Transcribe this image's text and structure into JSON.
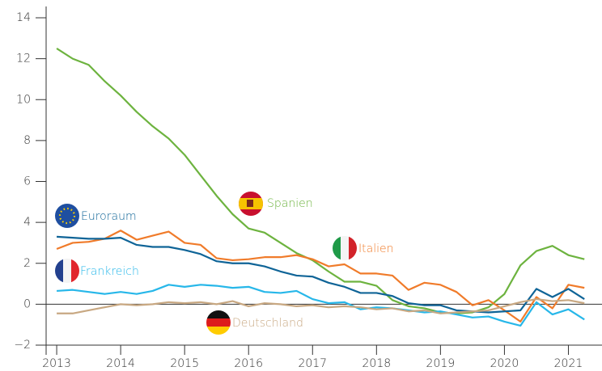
{
  "chart_data": {
    "type": "line",
    "x": [
      2013,
      2013.25,
      2013.5,
      2013.75,
      2014,
      2014.25,
      2014.5,
      2014.75,
      2015,
      2015.25,
      2015.5,
      2015.75,
      2016,
      2016.25,
      2016.5,
      2016.75,
      2017,
      2017.25,
      2017.5,
      2017.75,
      2018,
      2018.25,
      2018.5,
      2018.75,
      2019,
      2019.25,
      2019.5,
      2019.75,
      2020,
      2020.25,
      2020.5,
      2020.75,
      2021,
      2021.25
    ],
    "xlim": [
      2012.86,
      2021.5
    ],
    "xticks": [
      2013,
      2014,
      2015,
      2016,
      2017,
      2018,
      2019,
      2020,
      2021
    ],
    "ylim": [
      -2,
      14
    ],
    "yticks": [
      {
        "value": -2,
        "label": "−2"
      },
      0,
      2,
      4,
      6,
      8,
      10,
      12,
      14
    ],
    "series": [
      {
        "name": "Spanien",
        "color": "#6db33f",
        "values": [
          12.5,
          12.0,
          11.7,
          10.9,
          10.2,
          9.4,
          8.7,
          8.1,
          7.3,
          6.3,
          5.3,
          4.4,
          3.7,
          3.5,
          3.0,
          2.5,
          2.15,
          1.6,
          1.1,
          1.1,
          0.9,
          0.2,
          -0.1,
          -0.2,
          -0.4,
          -0.45,
          -0.4,
          -0.15,
          0.5,
          1.9,
          2.6,
          2.85,
          2.4,
          2.2
        ]
      },
      {
        "name": "Italien",
        "color": "#f07b2a",
        "values": [
          2.7,
          3.0,
          3.05,
          3.2,
          3.6,
          3.15,
          3.35,
          3.55,
          3.0,
          2.9,
          2.25,
          2.15,
          2.2,
          2.3,
          2.3,
          2.4,
          2.2,
          1.85,
          1.95,
          1.5,
          1.5,
          1.4,
          0.7,
          1.05,
          0.95,
          0.6,
          -0.05,
          0.2,
          -0.3,
          -0.85,
          0.35,
          -0.2,
          0.95,
          0.8
        ]
      },
      {
        "name": "Euroraum",
        "color": "#0f6497",
        "values": [
          3.3,
          3.25,
          3.2,
          3.2,
          3.25,
          2.9,
          2.8,
          2.8,
          2.65,
          2.45,
          2.1,
          2.0,
          2.0,
          1.85,
          1.6,
          1.4,
          1.35,
          1.05,
          0.85,
          0.55,
          0.55,
          0.4,
          0.05,
          -0.05,
          -0.05,
          -0.3,
          -0.35,
          -0.4,
          -0.35,
          -0.3,
          0.75,
          0.35,
          0.75,
          0.25
        ]
      },
      {
        "name": "Frankreich",
        "color": "#27b7e9",
        "values": [
          0.65,
          0.7,
          0.6,
          0.5,
          0.6,
          0.5,
          0.65,
          0.95,
          0.85,
          0.95,
          0.9,
          0.8,
          0.85,
          0.6,
          0.55,
          0.65,
          0.25,
          0.05,
          0.1,
          -0.25,
          -0.15,
          -0.2,
          -0.3,
          -0.4,
          -0.35,
          -0.5,
          -0.65,
          -0.6,
          -0.85,
          -1.05,
          0.1,
          -0.5,
          -0.25,
          -0.75
        ]
      },
      {
        "name": "Deutschland",
        "color": "#c8a882",
        "values": [
          -0.45,
          -0.45,
          -0.3,
          -0.15,
          0.0,
          -0.05,
          0.0,
          0.1,
          0.05,
          0.1,
          0.0,
          0.15,
          -0.1,
          0.05,
          0.0,
          -0.1,
          -0.05,
          -0.15,
          -0.1,
          -0.15,
          -0.25,
          -0.2,
          -0.35,
          -0.3,
          -0.45,
          -0.4,
          -0.35,
          -0.3,
          -0.1,
          0.1,
          0.25,
          0.15,
          0.2,
          0.05
        ]
      }
    ]
  }
}
